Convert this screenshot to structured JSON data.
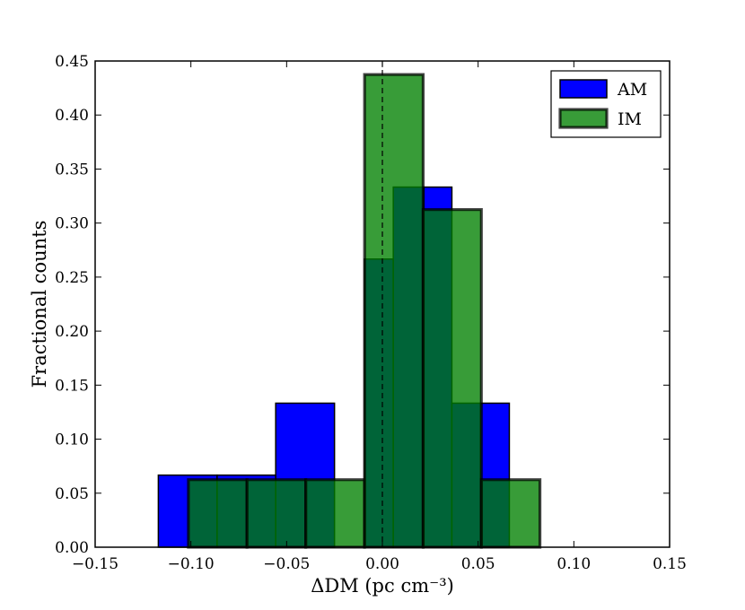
{
  "chart_data": {
    "type": "bar",
    "title": "",
    "xlabel": "ΔDM (pc cm⁻³)",
    "ylabel": "Fractional counts",
    "xlim": [
      -0.15,
      0.15
    ],
    "ylim": [
      0.0,
      0.45
    ],
    "x_ticks": [
      "−0.15",
      "−0.10",
      "−0.05",
      "0.00",
      "0.05",
      "0.10",
      "0.15"
    ],
    "x_tick_values": [
      -0.15,
      -0.1,
      -0.05,
      0.0,
      0.05,
      0.1,
      0.15
    ],
    "y_ticks": [
      "0.00",
      "0.05",
      "0.10",
      "0.15",
      "0.20",
      "0.25",
      "0.30",
      "0.35",
      "0.40",
      "0.45"
    ],
    "y_tick_values": [
      0.0,
      0.05,
      0.1,
      0.15,
      0.2,
      0.25,
      0.3,
      0.35,
      0.4,
      0.45
    ],
    "grid": false,
    "legend_position": "top-right",
    "vline": {
      "x": 0.0,
      "style": "dashed"
    },
    "series": [
      {
        "name": "AM",
        "color": "#0000ff",
        "edge_color": "#000000",
        "opacity": 1.0,
        "bin_edges": [
          -0.117,
          -0.0863,
          -0.0557,
          -0.025,
          -0.0093,
          0.0057,
          0.0217,
          0.0363,
          0.0513,
          0.0663
        ],
        "values": [
          0.0667,
          0.0667,
          0.1333,
          0.0,
          0.2667,
          0.3333,
          0.3333,
          0.1333,
          0.1333
        ]
      },
      {
        "name": "IM",
        "color": "#008000",
        "edge_color": "#000000",
        "opacity": 0.78,
        "bin_edges": [
          -0.1013,
          -0.0707,
          -0.04,
          -0.0093,
          0.0213,
          0.0517,
          0.0823
        ],
        "values": [
          0.0625,
          0.0625,
          0.0625,
          0.4375,
          0.3125,
          0.0625
        ]
      }
    ]
  }
}
